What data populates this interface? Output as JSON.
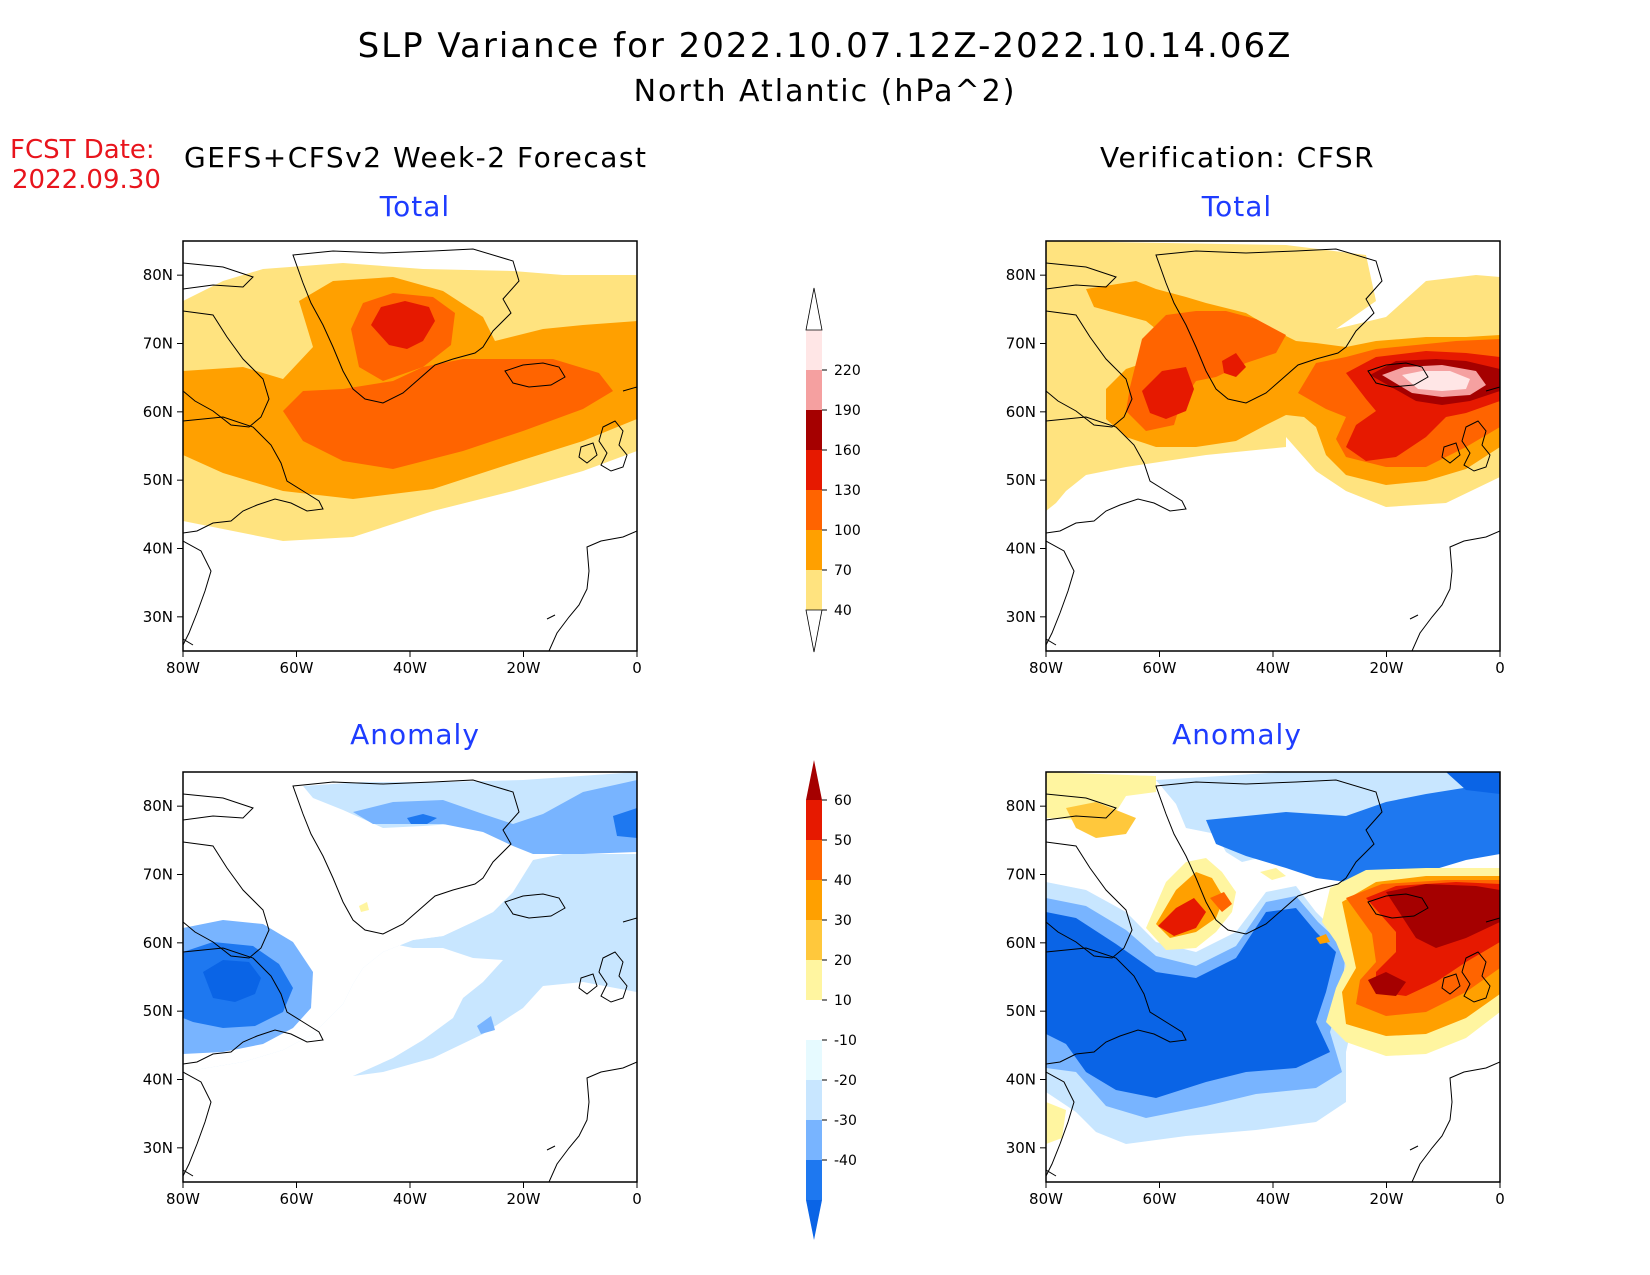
{
  "title": {
    "line1": "SLP Variance for 2022.10.07.12Z-2022.10.14.06Z",
    "line2": "North Atlantic (hPa^2)"
  },
  "forecast_date": {
    "label": "FCST Date:",
    "value": "2022.09.30"
  },
  "column_titles": {
    "left": "GEFS+CFSv2 Week-2 Forecast",
    "right": "Verification: CFSR"
  },
  "panels": [
    {
      "id": "forecast-total",
      "title": "Total"
    },
    {
      "id": "verification-total",
      "title": "Total"
    },
    {
      "id": "forecast-anomaly",
      "title": "Anomaly"
    },
    {
      "id": "verification-anomaly",
      "title": "Anomaly"
    }
  ],
  "axes": {
    "lon_ticks": [
      "80W",
      "60W",
      "40W",
      "20W",
      "0"
    ],
    "lat_ticks": [
      "80N",
      "70N",
      "60N",
      "50N",
      "40N",
      "30N"
    ],
    "lon_range": [
      -80,
      0
    ],
    "lat_range": [
      25,
      85
    ]
  },
  "colorbars": {
    "total": {
      "levels": [
        "40",
        "70",
        "100",
        "130",
        "160",
        "190",
        "220"
      ],
      "colors": [
        "#ffe37f",
        "#ffa000",
        "#ff6400",
        "#e61900",
        "#a50000",
        "#f5a0a0",
        "#ffe6e6"
      ]
    },
    "anomaly": {
      "levels": [
        "-40",
        "-30",
        "-20",
        "-10",
        "10",
        "20",
        "30",
        "40",
        "50",
        "60"
      ],
      "colors": [
        "#0a64e6",
        "#1e78f0",
        "#78b4ff",
        "#c8e6ff",
        "#e6faff",
        "#ffffff",
        "#fff5a0",
        "#ffc83c",
        "#ffa000",
        "#ff6400",
        "#e61900",
        "#a50000"
      ]
    }
  },
  "palette": {
    "land_outline": "#000000",
    "title_color": "#000000",
    "panel_title_color": "#1e3cff",
    "fcst_date_color": "#e8141c"
  }
}
